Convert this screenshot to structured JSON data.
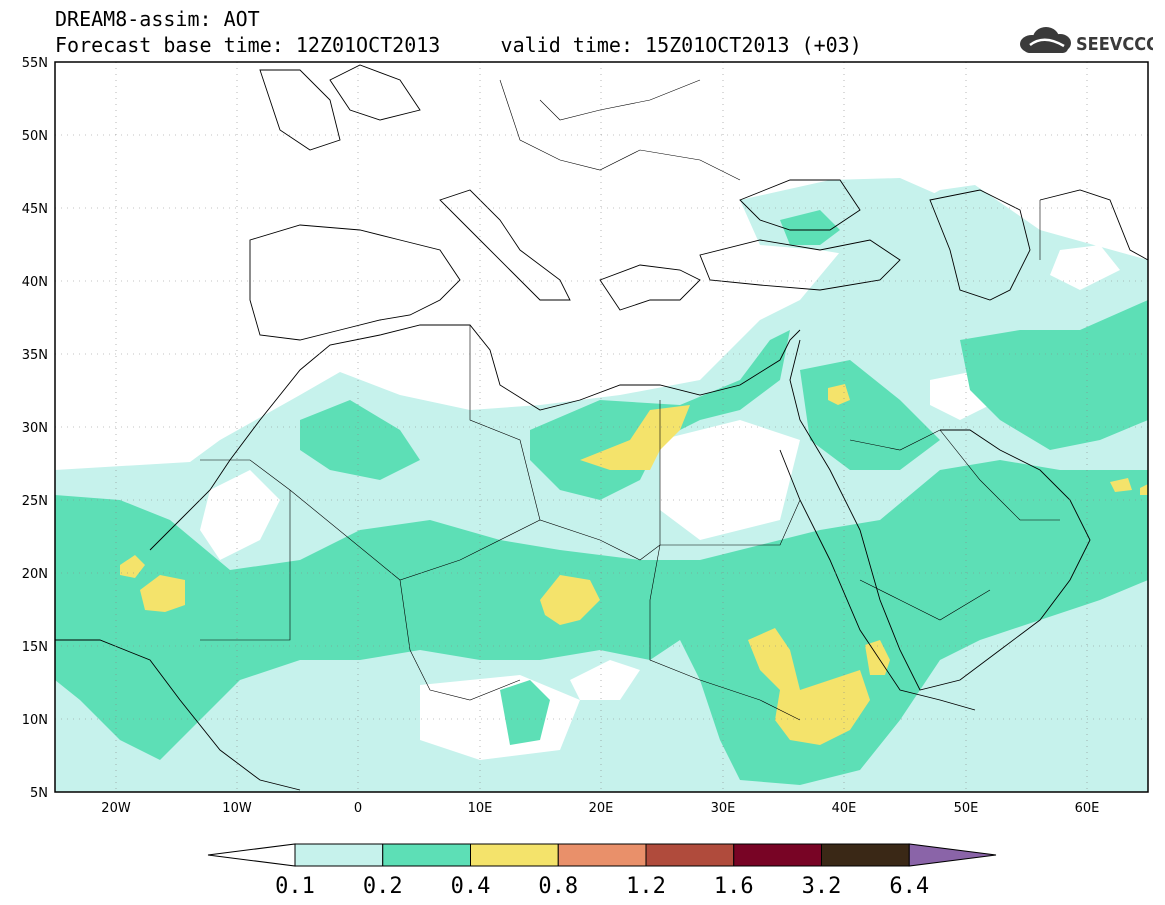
{
  "header": {
    "title_line1": "DREAM8-assim: AOT",
    "base_time": "Forecast base time: 12Z01OCT2013",
    "valid_time": "valid time: 15Z01OCT2013 (+03)",
    "logo_text": "SEEVCCC"
  },
  "axes": {
    "lat_ticks": [
      "55N",
      "50N",
      "45N",
      "40N",
      "35N",
      "30N",
      "25N",
      "20N",
      "15N",
      "10N",
      "5N"
    ],
    "lon_ticks": [
      "20W",
      "10W",
      "0",
      "10E",
      "20E",
      "30E",
      "40E",
      "50E",
      "60E"
    ]
  },
  "legend": {
    "levels": [
      "0.1",
      "0.2",
      "0.4",
      "0.8",
      "1.2",
      "1.6",
      "3.2",
      "6.4"
    ],
    "colors": [
      "#ffffff",
      "#c6f2ec",
      "#5ddfb6",
      "#f4e36b",
      "#e9906a",
      "#b04b3c",
      "#780425",
      "#3a2816",
      "#8a64a8"
    ]
  },
  "colors": {
    "background": "#ffffff",
    "frame": "#000000"
  }
}
